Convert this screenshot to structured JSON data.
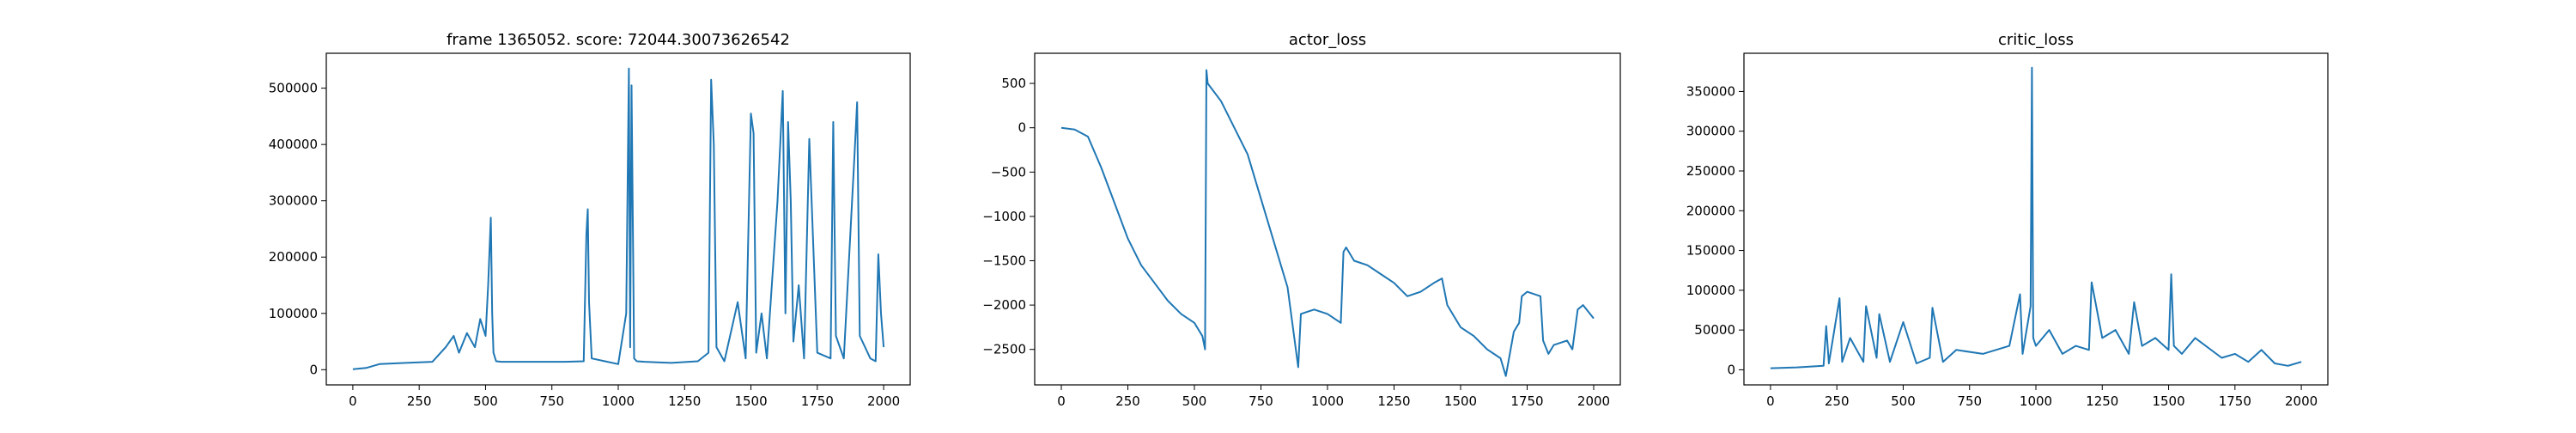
{
  "chart_data": [
    {
      "type": "line",
      "title": "frame 1365052. score: 72044.30073626542",
      "xlabel": "",
      "ylabel": "",
      "xlim": [
        -100,
        2100
      ],
      "ylim": [
        -27000,
        562000
      ],
      "xticks": [
        "0",
        "250",
        "500",
        "750",
        "1000",
        "1250",
        "1500",
        "1750",
        "2000"
      ],
      "yticks": [
        "0",
        "100000",
        "200000",
        "300000",
        "400000",
        "500000"
      ],
      "grid": false,
      "color": "#1f77b4",
      "series": [
        {
          "x": [
            0,
            50,
            100,
            200,
            300,
            350,
            380,
            400,
            430,
            460,
            480,
            500,
            510,
            520,
            525,
            530,
            540,
            560,
            600,
            700,
            800,
            870,
            880,
            885,
            890,
            900,
            950,
            1000,
            1030,
            1040,
            1045,
            1050,
            1060,
            1070,
            1100,
            1200,
            1300,
            1340,
            1350,
            1360,
            1370,
            1400,
            1450,
            1480,
            1500,
            1510,
            1520,
            1540,
            1560,
            1600,
            1620,
            1630,
            1640,
            1650,
            1660,
            1680,
            1700,
            1720,
            1750,
            1800,
            1810,
            1820,
            1850,
            1890,
            1900,
            1910,
            1950,
            1970,
            1980,
            1990,
            2000
          ],
          "y": [
            1000,
            3000,
            10000,
            12000,
            14000,
            40000,
            60000,
            30000,
            65000,
            40000,
            90000,
            60000,
            150000,
            270000,
            100000,
            30000,
            15000,
            14000,
            14000,
            14000,
            14000,
            15000,
            240000,
            285000,
            120000,
            20000,
            15000,
            10000,
            100000,
            535000,
            40000,
            505000,
            20000,
            15000,
            14000,
            12000,
            15000,
            30000,
            515000,
            400000,
            40000,
            15000,
            120000,
            20000,
            455000,
            420000,
            30000,
            100000,
            20000,
            300000,
            495000,
            100000,
            440000,
            300000,
            50000,
            150000,
            20000,
            410000,
            30000,
            20000,
            440000,
            60000,
            20000,
            380000,
            475000,
            60000,
            20000,
            15000,
            205000,
            100000,
            40000
          ]
        }
      ]
    },
    {
      "type": "line",
      "title": "actor_loss",
      "xlabel": "",
      "ylabel": "",
      "xlim": [
        -100,
        2100
      ],
      "ylim": [
        -2900,
        840
      ],
      "xticks": [
        "0",
        "250",
        "500",
        "750",
        "1000",
        "1250",
        "1500",
        "1750",
        "2000"
      ],
      "yticks": [
        "−2500",
        "−2000",
        "−1500",
        "−1000",
        "−500",
        "0",
        "500"
      ],
      "grid": false,
      "color": "#1f77b4",
      "series": [
        {
          "x": [
            0,
            50,
            100,
            150,
            200,
            250,
            300,
            350,
            400,
            450,
            500,
            530,
            540,
            545,
            550,
            600,
            650,
            700,
            750,
            800,
            850,
            890,
            900,
            950,
            1000,
            1050,
            1060,
            1070,
            1100,
            1150,
            1200,
            1250,
            1300,
            1350,
            1400,
            1430,
            1450,
            1500,
            1550,
            1600,
            1650,
            1670,
            1700,
            1720,
            1730,
            1750,
            1800,
            1810,
            1830,
            1850,
            1900,
            1920,
            1940,
            1960,
            2000
          ],
          "y": [
            0,
            -20,
            -100,
            -450,
            -850,
            -1250,
            -1550,
            -1750,
            -1950,
            -2100,
            -2200,
            -2350,
            -2500,
            650,
            500,
            300,
            0,
            -300,
            -800,
            -1300,
            -1800,
            -2700,
            -2100,
            -2050,
            -2100,
            -2200,
            -1400,
            -1350,
            -1500,
            -1550,
            -1650,
            -1750,
            -1900,
            -1850,
            -1750,
            -1700,
            -2000,
            -2250,
            -2350,
            -2500,
            -2600,
            -2800,
            -2300,
            -2200,
            -1900,
            -1850,
            -1900,
            -2400,
            -2550,
            -2450,
            -2400,
            -2500,
            -2050,
            -2000,
            -2150
          ]
        }
      ]
    },
    {
      "type": "line",
      "title": "critic_loss",
      "xlabel": "",
      "ylabel": "",
      "xlim": [
        -100,
        2100
      ],
      "ylim": [
        -19000,
        398000
      ],
      "xticks": [
        "0",
        "250",
        "500",
        "750",
        "1000",
        "1250",
        "1500",
        "1750",
        "2000"
      ],
      "yticks": [
        "0",
        "50000",
        "100000",
        "150000",
        "200000",
        "250000",
        "300000",
        "350000"
      ],
      "grid": false,
      "color": "#1f77b4",
      "series": [
        {
          "x": [
            0,
            100,
            200,
            210,
            220,
            260,
            270,
            300,
            350,
            360,
            400,
            410,
            450,
            500,
            550,
            600,
            610,
            650,
            700,
            800,
            900,
            940,
            950,
            980,
            985,
            990,
            1000,
            1050,
            1100,
            1150,
            1200,
            1210,
            1250,
            1300,
            1350,
            1370,
            1400,
            1450,
            1500,
            1510,
            1520,
            1550,
            1600,
            1700,
            1750,
            1800,
            1850,
            1900,
            1950,
            2000
          ],
          "y": [
            2000,
            3000,
            5000,
            55000,
            8000,
            90000,
            10000,
            40000,
            10000,
            80000,
            15000,
            70000,
            10000,
            60000,
            8000,
            15000,
            78000,
            10000,
            25000,
            20000,
            30000,
            95000,
            20000,
            80000,
            380000,
            40000,
            30000,
            50000,
            20000,
            30000,
            25000,
            110000,
            40000,
            50000,
            20000,
            85000,
            30000,
            40000,
            25000,
            120000,
            30000,
            20000,
            40000,
            15000,
            20000,
            10000,
            25000,
            8000,
            5000,
            10000
          ]
        }
      ]
    }
  ]
}
